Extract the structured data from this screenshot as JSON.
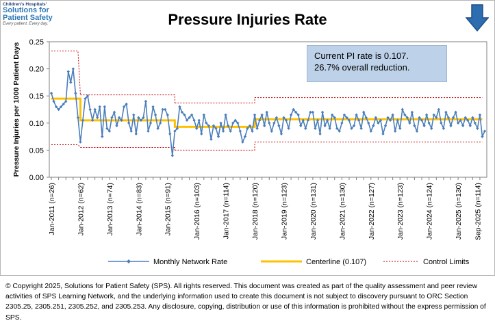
{
  "logo": {
    "line1": "Children's Hospitals'",
    "line2": "Solutions for",
    "line3": "Patient Safety",
    "line4": "Every patient. Every day."
  },
  "info_box": {
    "line1": "Current PI rate is 0.107.",
    "line2": "26.7% overall reduction."
  },
  "footer": {
    "text": "© Copyright 2025, Solutions for Patient Safety (SPS).  All rights reserved.  This document was created as part of the quality assessment and peer review activities of SPS Learning Network, and the underlying information used to create this document is not subject to discovery pursuant to ORC Section 2305.25, 2305.251, 2305.252, and 2305.253. Any disclosure, copying, distribution or use of this information is prohibited without the express permission of SPS."
  },
  "colors": {
    "series": "#4a7ebb",
    "centerline": "#ffc000",
    "limits": "#c00000",
    "arrow": "#2e6eb0"
  },
  "chart_data": {
    "type": "line",
    "title": "Pressure Injuries Rate",
    "xlabel": "",
    "ylabel": "Pressure Injuries per 1000 Patient Days",
    "ylim": [
      0,
      0.25
    ],
    "yticks": [
      "0.25",
      "0.20",
      "0.15",
      "0.10",
      "0.05",
      "0.00"
    ],
    "ytick_values": [
      0.25,
      0.2,
      0.15,
      0.1,
      0.05,
      0.0
    ],
    "xtick_labels": [
      {
        "label": "Jan-2011 (n=26)",
        "index": 0
      },
      {
        "label": "Jan-2012 (n=62)",
        "index": 12
      },
      {
        "label": "Jan-2013 (n=74)",
        "index": 24
      },
      {
        "label": "Jan-2014 (n=83)",
        "index": 36
      },
      {
        "label": "Jan-2015 (n=91)",
        "index": 48
      },
      {
        "label": "Jan-2016 (n=103)",
        "index": 60
      },
      {
        "label": "Jan-2017 (n=114)",
        "index": 72
      },
      {
        "label": "Jan-2018 (n=120)",
        "index": 84
      },
      {
        "label": "Jan-2019 (n=123)",
        "index": 96
      },
      {
        "label": "Jan-2020 (n=131)",
        "index": 108
      },
      {
        "label": "Jan-2021 (n=130)",
        "index": 120
      },
      {
        "label": "Jan-2022 (n=127)",
        "index": 132
      },
      {
        "label": "Jan-2023 (n=123)",
        "index": 144
      },
      {
        "label": "Jan-2024 (n=124)",
        "index": 156
      },
      {
        "label": "Jan-2025 (n=130)",
        "index": 168
      },
      {
        "label": "Sep-2025 (n=114)",
        "index": 176
      }
    ],
    "series": [
      {
        "name": "Monthly Network Rate",
        "values": [
          0.155,
          0.14,
          0.13,
          0.125,
          0.13,
          0.135,
          0.14,
          0.195,
          0.175,
          0.2,
          0.155,
          0.11,
          0.065,
          0.105,
          0.145,
          0.15,
          0.125,
          0.105,
          0.125,
          0.11,
          0.13,
          0.075,
          0.13,
          0.09,
          0.085,
          0.11,
          0.12,
          0.095,
          0.11,
          0.105,
          0.13,
          0.135,
          0.1,
          0.085,
          0.115,
          0.08,
          0.11,
          0.105,
          0.11,
          0.14,
          0.085,
          0.1,
          0.13,
          0.115,
          0.09,
          0.1,
          0.125,
          0.125,
          0.115,
          0.08,
          0.04,
          0.085,
          0.09,
          0.13,
          0.12,
          0.115,
          0.105,
          0.11,
          0.115,
          0.105,
          0.09,
          0.105,
          0.08,
          0.115,
          0.1,
          0.095,
          0.07,
          0.095,
          0.09,
          0.075,
          0.1,
          0.085,
          0.115,
          0.095,
          0.085,
          0.1,
          0.105,
          0.1,
          0.085,
          0.065,
          0.075,
          0.09,
          0.095,
          0.085,
          0.115,
          0.09,
          0.105,
          0.115,
          0.095,
          0.12,
          0.1,
          0.085,
          0.1,
          0.11,
          0.095,
          0.08,
          0.11,
          0.105,
          0.09,
          0.115,
          0.125,
          0.12,
          0.115,
          0.095,
          0.105,
          0.09,
          0.105,
          0.12,
          0.12,
          0.09,
          0.105,
          0.08,
          0.12,
          0.095,
          0.105,
          0.09,
          0.115,
          0.11,
          0.09,
          0.085,
          0.1,
          0.115,
          0.11,
          0.105,
          0.09,
          0.095,
          0.115,
          0.105,
          0.09,
          0.12,
          0.11,
          0.1,
          0.085,
          0.095,
          0.11,
          0.1,
          0.105,
          0.08,
          0.095,
          0.11,
          0.105,
          0.115,
          0.085,
          0.105,
          0.09,
          0.125,
          0.115,
          0.11,
          0.1,
          0.12,
          0.095,
          0.085,
          0.11,
          0.105,
          0.095,
          0.115,
          0.1,
          0.09,
          0.115,
          0.11,
          0.125,
          0.1,
          0.09,
          0.12,
          0.11,
          0.095,
          0.11,
          0.12,
          0.1,
          0.105,
          0.095,
          0.11,
          0.105,
          0.095,
          0.11,
          0.1,
          0.09,
          0.115,
          0.075,
          0.085
        ]
      },
      {
        "name": "Centerline (0.107)",
        "segments": [
          {
            "start": 0,
            "end": 12,
            "value": 0.145
          },
          {
            "start": 12,
            "end": 51,
            "value": 0.105
          },
          {
            "start": 51,
            "end": 84,
            "value": 0.093
          },
          {
            "start": 84,
            "end": 178,
            "value": 0.107
          }
        ]
      },
      {
        "name": "Control Limits",
        "upper": [
          {
            "start": 0,
            "end": 11,
            "value": 0.233
          },
          {
            "start": 12,
            "end": 51,
            "value": 0.152
          },
          {
            "start": 51,
            "end": 84,
            "value": 0.137
          },
          {
            "start": 84,
            "end": 178,
            "value": 0.147
          }
        ],
        "lower": [
          {
            "start": 0,
            "end": 11,
            "value": 0.06
          },
          {
            "start": 12,
            "end": 51,
            "value": 0.055
          },
          {
            "start": 51,
            "end": 84,
            "value": 0.05
          },
          {
            "start": 84,
            "end": 178,
            "value": 0.065
          }
        ]
      }
    ],
    "legend": {
      "position": "bottom",
      "items": [
        "Monthly Network Rate",
        "Centerline (0.107)",
        "Control Limits"
      ]
    }
  }
}
